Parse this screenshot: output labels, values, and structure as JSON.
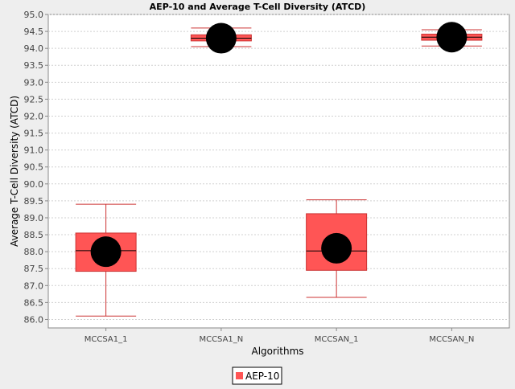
{
  "chart_data": {
    "type": "box",
    "title": "AEP-10 and Average T-Cell Diversity (ATCD)",
    "xlabel": "Algorithms",
    "ylabel": "Average T-Cell Diversity (ATCD)",
    "ylim": [
      85.75,
      95.0
    ],
    "yticks": [
      86.0,
      86.5,
      87.0,
      87.5,
      88.0,
      88.5,
      89.0,
      89.5,
      90.0,
      90.5,
      91.0,
      91.5,
      92.0,
      92.5,
      93.0,
      93.5,
      94.0,
      94.5,
      95.0
    ],
    "grid": true,
    "legend_position": "bottom",
    "categories": [
      "MCCSA1_1",
      "MCCSA1_N",
      "MCCSAN_1",
      "MCCSAN_N"
    ],
    "series": [
      {
        "name": "AEP-10",
        "color": "#FF5555",
        "whisker_color": "#CC3333",
        "mean_marker_color": "#000000",
        "boxes": [
          {
            "min": 86.1,
            "q1": 87.42,
            "median": 88.03,
            "q3": 88.55,
            "max": 89.4,
            "mean": 88.0
          },
          {
            "min": 94.05,
            "q1": 94.22,
            "median": 94.3,
            "q3": 94.4,
            "max": 94.6,
            "mean": 94.3
          },
          {
            "min": 86.65,
            "q1": 87.45,
            "median": 88.02,
            "q3": 89.12,
            "max": 89.53,
            "mean": 88.1
          },
          {
            "min": 94.07,
            "q1": 94.24,
            "median": 94.33,
            "q3": 94.42,
            "max": 94.55,
            "mean": 94.33
          }
        ]
      }
    ]
  }
}
